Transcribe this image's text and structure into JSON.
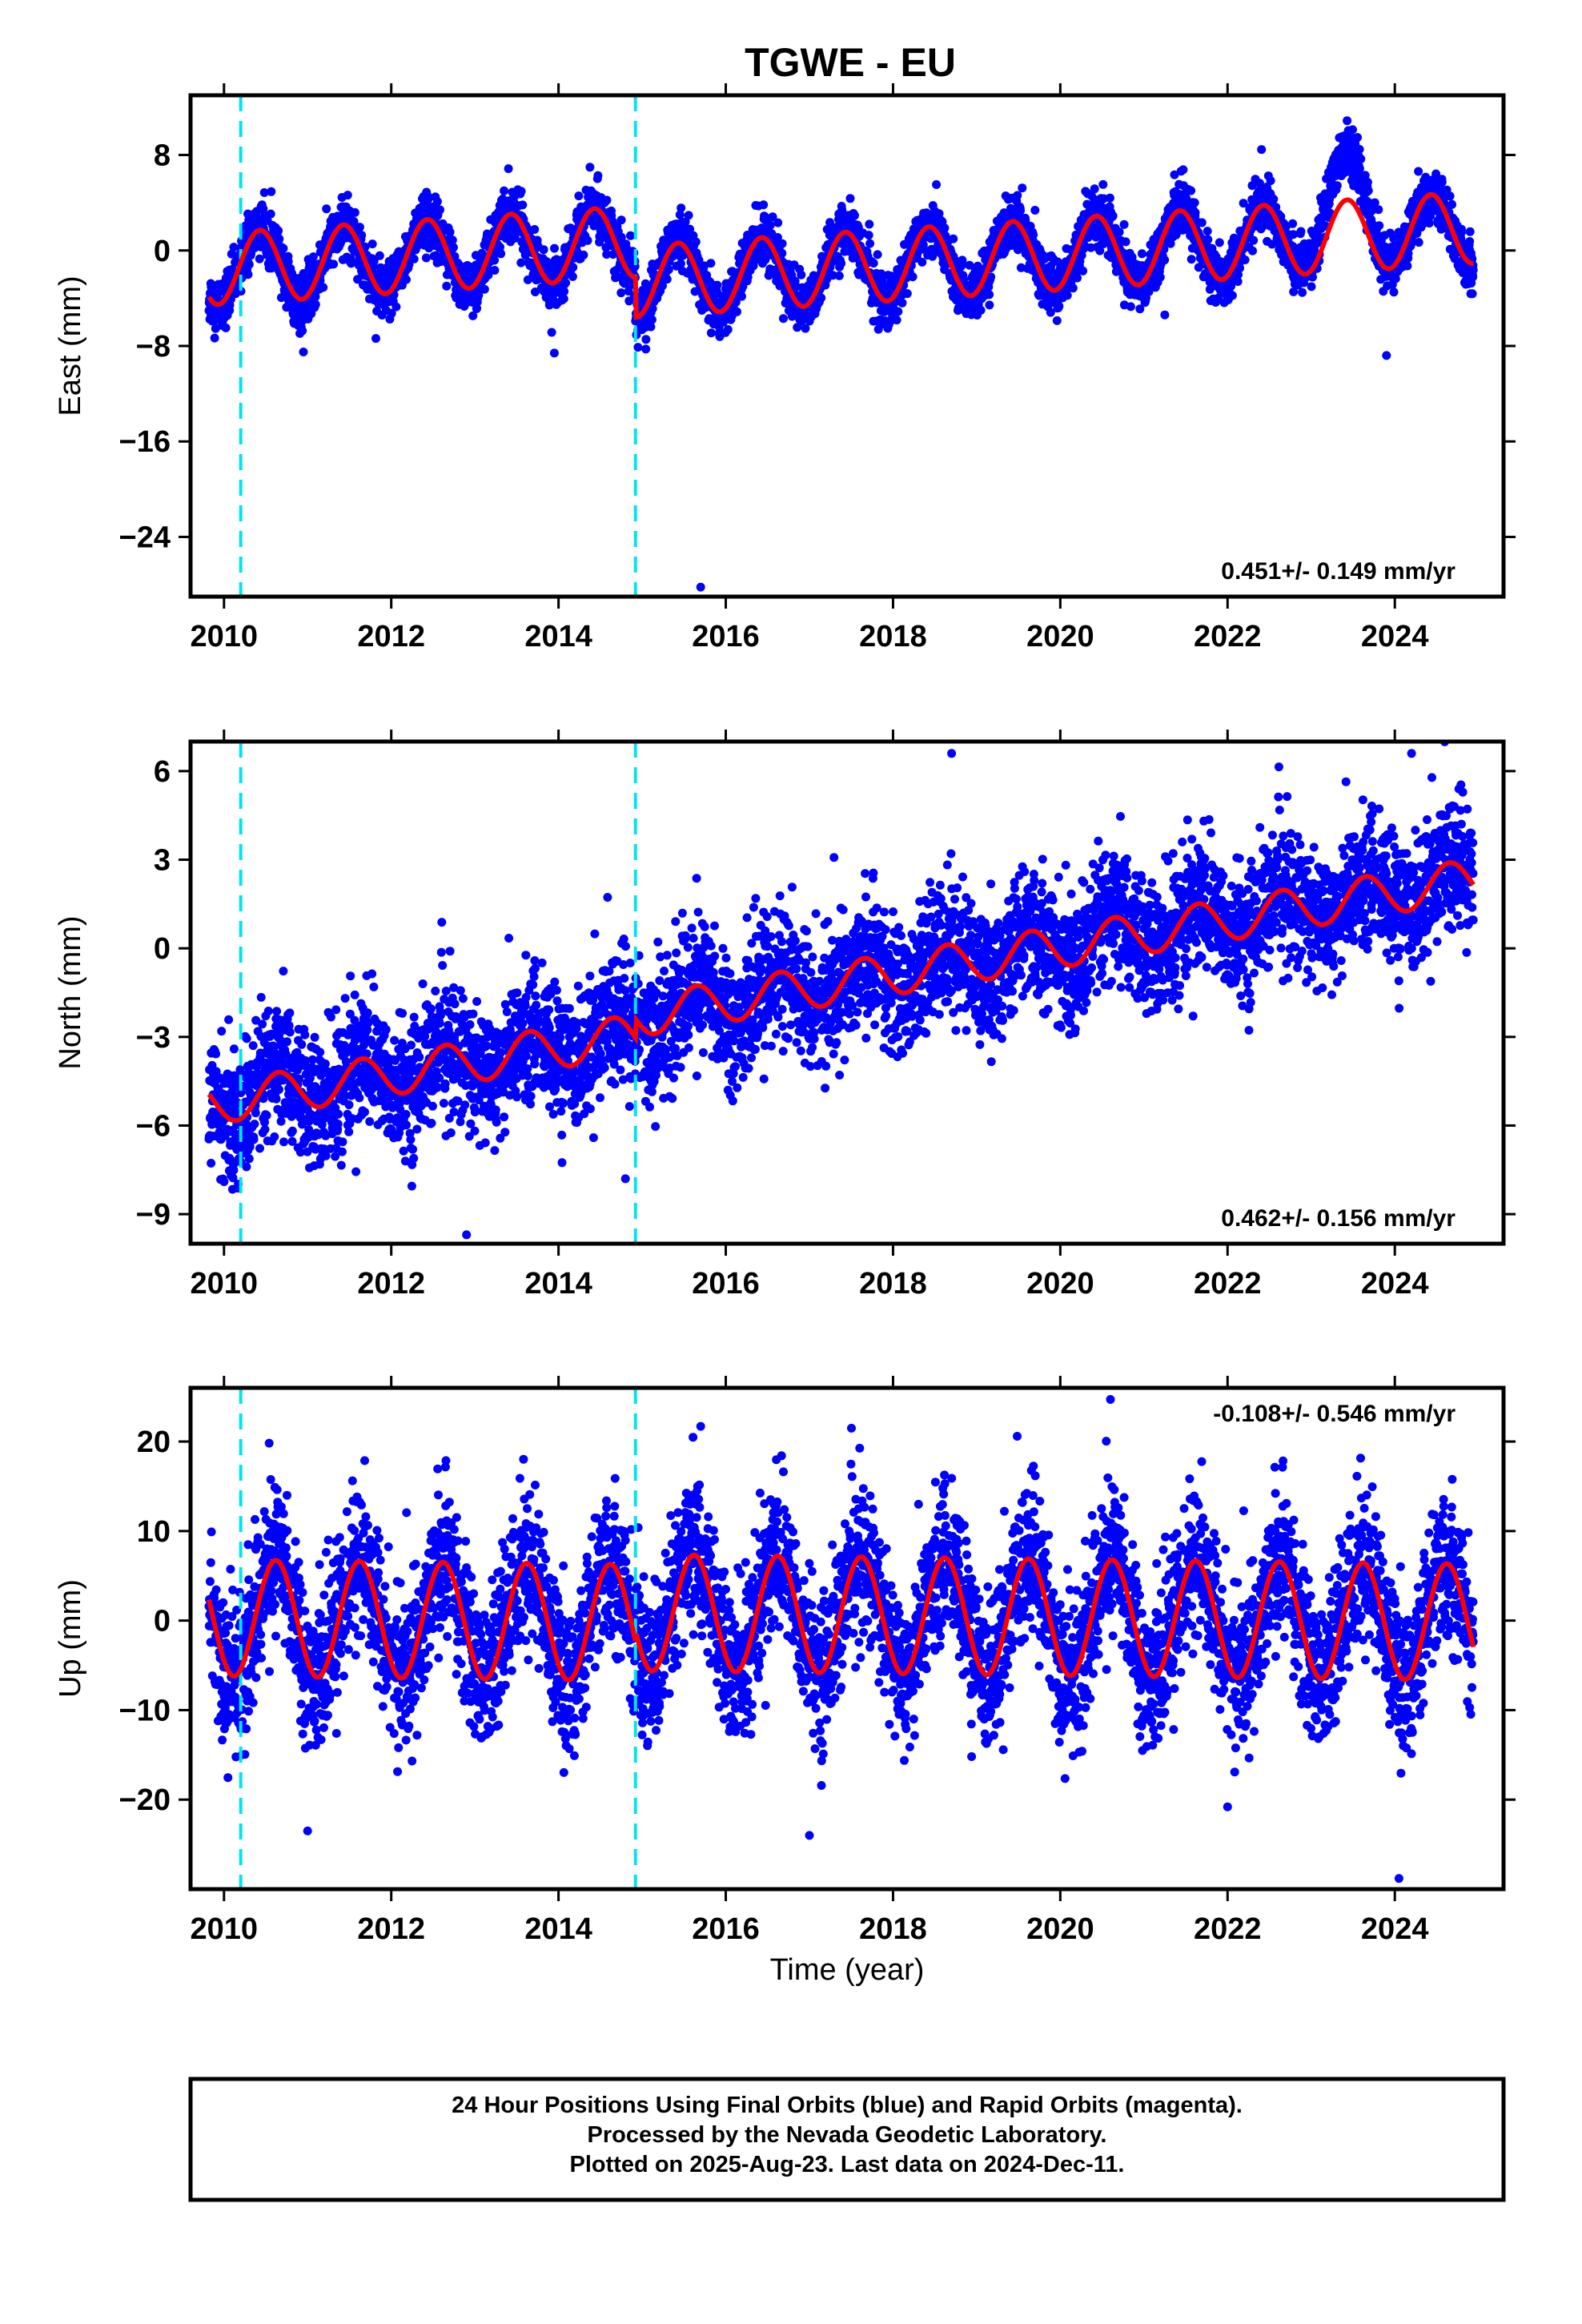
{
  "title": "TGWE - EU",
  "chart_data": {
    "type": "scatter",
    "title": "TGWE - EU",
    "xlabel": "Time (year)",
    "xlim": [
      2009.6,
      2025.3
    ],
    "xticks": [
      2010,
      2012,
      2014,
      2016,
      2018,
      2020,
      2022,
      2024
    ],
    "xtick_labels": [
      "2010",
      "2012",
      "2014",
      "2016",
      "2018",
      "2020",
      "2022",
      "2024"
    ],
    "data_start": 2009.82,
    "data_end": 2024.94,
    "events": [
      2010.2,
      2014.92
    ],
    "colors": {
      "points": "#0000ff",
      "model": "#ff0000",
      "events": "#00e5ee",
      "frame": "#000000"
    },
    "panels": [
      {
        "id": "east",
        "ylabel": "East (mm)",
        "ylim": [
          -29,
          13
        ],
        "yticks": [
          8,
          0,
          -8,
          -16,
          -24
        ],
        "ytick_labels": [
          "8",
          "0",
          "−8",
          "−16",
          "−24"
        ],
        "rate_label": "0.451+/- 0.149 mm/yr",
        "rate_position": "bottom-right",
        "trend": {
          "rate": 0.451,
          "offset_at_2010": -1.5,
          "offset_break": -2.6,
          "break": 2014.92
        },
        "seasonal": {
          "amplitude": 3.0,
          "phase": 0.18
        },
        "scatter_sd": 1.1,
        "anomaly": {
          "center": 2023.4,
          "width": 0.35,
          "amplitude": 4.0
        },
        "outliers": [
          [
            2015.7,
            -28.2
          ],
          [
            2010.95,
            -8.5
          ],
          [
            2013.95,
            -8.6
          ],
          [
            2023.9,
            -8.8
          ],
          [
            2021.25,
            -5.4
          ]
        ]
      },
      {
        "id": "north",
        "ylabel": "North (mm)",
        "ylim": [
          -10,
          7
        ],
        "yticks": [
          6,
          3,
          0,
          -3,
          -6,
          -9
        ],
        "ytick_labels": [
          "6",
          "3",
          "0",
          "−3",
          "−6",
          "−9"
        ],
        "rate_label": "0.462+/- 0.156 mm/yr",
        "rate_position": "bottom-right",
        "trend": {
          "rate": 0.462,
          "offset_at_2010": -5.2,
          "offset_break": -2.3,
          "break": 2014.92
        },
        "seasonal": {
          "amplitude": 0.7,
          "phase": 0.4
        },
        "scatter_sd": 1.1,
        "outliers": [
          [
            2012.9,
            -9.7
          ],
          [
            2018.7,
            6.6
          ],
          [
            2024.2,
            6.6
          ],
          [
            2014.8,
            -7.8
          ]
        ]
      },
      {
        "id": "up",
        "ylabel": "Up (mm)",
        "ylim": [
          -30,
          26
        ],
        "yticks": [
          20,
          10,
          0,
          -10,
          -20
        ],
        "ytick_labels": [
          "20",
          "10",
          "0",
          "−10",
          "−20"
        ],
        "rate_label": "-0.108+/- 0.546 mm/yr",
        "rate_position": "top-right",
        "trend": {
          "rate": -0.108,
          "offset_at_2010": 0.3,
          "offset_break": 0.9,
          "break": 2014.92
        },
        "seasonal": {
          "amplitude": 6.5,
          "phase": 0.37
        },
        "scatter_sd": 4.2,
        "outliers": [
          [
            2024.05,
            -28.8
          ],
          [
            2020.6,
            24.7
          ],
          [
            2015.7,
            21.7
          ],
          [
            2011.0,
            -23.5
          ],
          [
            2017.0,
            -24.0
          ],
          [
            2022.0,
            -20.8
          ]
        ]
      }
    ]
  },
  "footer": {
    "line1": "24 Hour Positions Using Final Orbits (blue) and Rapid Orbits (magenta).",
    "line2": "Processed by the Nevada Geodetic Laboratory.",
    "line3": "Plotted on 2025-Aug-23. Last data on 2024-Dec-11."
  }
}
